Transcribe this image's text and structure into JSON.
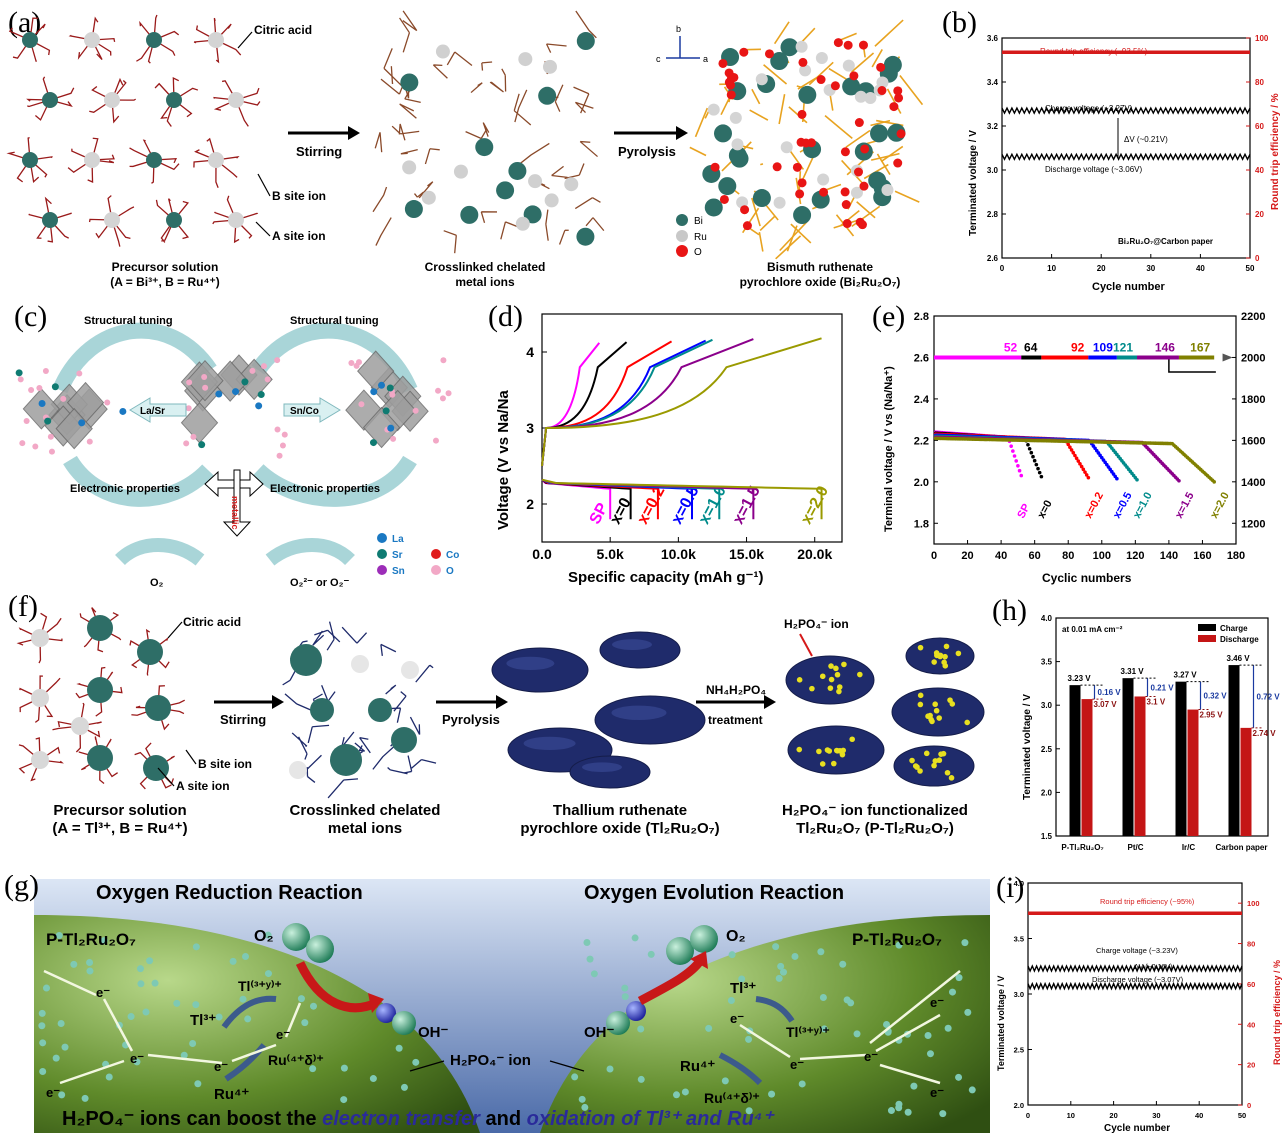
{
  "panel_labels": {
    "a": "(a)",
    "b": "(b)",
    "c": "(c)",
    "d": "(d)",
    "e": "(e)",
    "f": "(f)",
    "g": "(g)",
    "h": "(h)",
    "i": "(i)"
  },
  "panel_a": {
    "citric_acid": "Citric acid",
    "stirring": "Stirring",
    "pyrolysis": "Pyrolysis",
    "b_site": "B site ion",
    "a_site": "A site ion",
    "precursor_title": "Precursor solution",
    "precursor_sub": "(A = Bi³⁺, B = Ru⁴⁺)",
    "crosslinked_1": "Crosslinked chelated",
    "crosslinked_2": "metal ions",
    "product_1": "Bismuth ruthenate",
    "product_2": "pyrochlore oxide (Bi₂Ru₂O₇)",
    "legend": [
      "Bi",
      "Ru",
      "O"
    ],
    "axes": {
      "b": "b",
      "c": "c",
      "a": "a"
    }
  },
  "panel_b": {
    "ylabel": "Terminated voltage / V",
    "y2label": "Round trip efficiency / %",
    "xlabel": "Cycle number",
    "rte": "Round trip efficiency (~93.5%)",
    "charge": "Charge voltage (~3.27V)",
    "discharge": "Discharge voltage (~3.06V)",
    "dv": "ΔV (~0.21V)",
    "sample": "Bi₂Ru₂O₇@Carbon paper"
  },
  "panel_c": {
    "tuning_left": "Structural tuning",
    "tuning_right": "Structural tuning",
    "lasr": "La/Sr",
    "snco": "Sn/Co",
    "elec_left": "Electronic properties",
    "elec_right": "Electronic properties",
    "metallic": "metallic",
    "o2": "O₂",
    "o2_ions": "O₂²⁻ or O₂⁻",
    "legend": [
      "La",
      "Sr",
      "Sn",
      "Co",
      "O"
    ]
  },
  "panel_d": {
    "ylabel": "Voltage (V vs Na/Na",
    "xlabel": "Specific capacity (mAh g⁻¹)",
    "curve_labels": [
      "SP",
      "x=0",
      "x=0.2",
      "x=0.5",
      "x=1.0",
      "x=1.5",
      "x=2.0"
    ]
  },
  "panel_e": {
    "ylabel": "Terminal voltage / V vs (Na/Na⁺)",
    "xlabel": "Cyclic numbers",
    "top_numbers": [
      "52",
      "64",
      "92",
      "109",
      "121",
      "146",
      "167"
    ],
    "curve_labels": [
      "SP",
      "x=0",
      "x=0.2",
      "x=0.5",
      "x=1.0",
      "x=1.5",
      "x=2.0"
    ]
  },
  "panel_f": {
    "citric_acid": "Citric acid",
    "stirring": "Stirring",
    "pyrolysis": "Pyrolysis",
    "nh4": "NH₄H₂PO₄",
    "treatment": "treatment",
    "h2po4_ion": "H₂PO₄⁻ ion",
    "b_site": "B site ion",
    "a_site": "A site ion",
    "precursor_title": "Precursor solution",
    "precursor_sub": "(A = Tl³⁺, B = Ru⁴⁺)",
    "crosslinked_1": "Crosslinked chelated",
    "crosslinked_2": "metal ions",
    "product_1": "Thallium ruthenate",
    "product_2": "pyrochlore oxide (Tl₂Ru₂O₇)",
    "func_1": "H₂PO₄⁻ ion functionalized",
    "func_2": "Tl₂Ru₂O₇ (P-Tl₂Ru₂O₇)"
  },
  "panel_g": {
    "orr": "Oxygen Reduction Reaction",
    "oer": "Oxygen Evolution Reaction",
    "catalyst_left": "P-Tl₂Ru₂O₇",
    "catalyst_right": "P-Tl₂Ru₂O₇",
    "o2_left": "O₂",
    "o2_right": "O₂",
    "oh_left": "OH⁻",
    "oh_right": "OH⁻",
    "tl3_left": "Tl³⁺",
    "tl3y_left": "Tl⁽³⁺ʸ⁾⁺",
    "ru4d_left": "Ru⁽⁴⁺δ⁾⁺",
    "ru4_left": "Ru⁴⁺",
    "tl3_right": "Tl³⁺",
    "tl3y_right": "Tl⁽³⁺ʸ⁾⁺",
    "ru4_right": "Ru⁴⁺",
    "ru4d_right": "Ru⁽⁴⁺δ⁾⁺",
    "electron": "e⁻",
    "h2po4": "H₂PO₄⁻ ion",
    "bottom_1": "H₂PO₄⁻ ions can boost the ",
    "bottom_2": "electron transfer",
    "bottom_3": " and ",
    "bottom_4": "oxidation of Tl³⁺ and Ru⁴⁺"
  },
  "panel_h": {
    "ylabel": "Terminated voltage / V",
    "note": "at 0.01 mA cm⁻²",
    "legend": [
      "Charge",
      "Discharge"
    ],
    "deltas": [
      "0.16 V",
      "0.21 V",
      "0.32 V",
      "0.72 V"
    ]
  },
  "panel_i": {
    "ylabel": "Terminated voltage / V",
    "y2label": "Round trip efficiency / %",
    "xlabel": "Cycle number",
    "rte": "Round trip efficiency (~95%)",
    "charge": "Charge voltage (~3.23V)",
    "discharge": "Discharge voltage (~3.07V)",
    "dv": "ΔV (~0.16V)"
  },
  "colors": {
    "teal": "#2e6e67",
    "red": "#d51a1a",
    "navy": "#1f2b6b",
    "green": "#5f8a2a",
    "olive": "#8a8a10"
  },
  "chart_data": [
    {
      "type": "line",
      "panel": "b",
      "x": [
        0,
        50
      ],
      "xlim": [
        0,
        50
      ],
      "ylim": [
        2.6,
        3.6
      ],
      "y2lim": [
        0,
        100
      ],
      "xticks": [
        "0",
        "10",
        "20",
        "30",
        "40",
        "50"
      ],
      "yticks": [
        "2.6",
        "2.8",
        "3.0",
        "3.2",
        "3.4",
        "3.6"
      ],
      "y2ticks": [
        "0",
        "20",
        "40",
        "60",
        "80",
        "100"
      ],
      "xlabel": "Cycle number",
      "ylabel": "Terminated voltage / V",
      "y2label": "Round trip efficiency / %",
      "series": [
        {
          "name": "Charge voltage (~3.27V)",
          "values": [
            3.27,
            3.27
          ]
        },
        {
          "name": "Discharge voltage (~3.06V)",
          "values": [
            3.06,
            3.06
          ]
        },
        {
          "name": "Round trip efficiency (~93.5%)",
          "axis": "right",
          "values": [
            93.5,
            93.5
          ]
        }
      ]
    },
    {
      "type": "line",
      "panel": "d",
      "xlim": [
        0,
        22000
      ],
      "ylim": [
        1.5,
        4.5
      ],
      "xticks": [
        "0.0",
        "5.0k",
        "10.0k",
        "15.0k",
        "20.0k"
      ],
      "yticks": [
        "2",
        "3",
        "4"
      ],
      "xlabel": "Specific capacity (mAh g⁻¹)",
      "ylabel": "Voltage (V vs Na/Na",
      "series": [
        {
          "name": "SP",
          "discharge_end": 5000,
          "charge_end": 4200,
          "color": "#ff00ff"
        },
        {
          "name": "x=0",
          "discharge_end": 6500,
          "charge_end": 6200,
          "color": "#000000"
        },
        {
          "name": "x=0.2",
          "discharge_end": 8500,
          "charge_end": 9500,
          "color": "#ff0000"
        },
        {
          "name": "x=0.5",
          "discharge_end": 11000,
          "charge_end": 12000,
          "color": "#0000ff"
        },
        {
          "name": "x=1.0",
          "discharge_end": 13000,
          "charge_end": 12500,
          "color": "#008b8b"
        },
        {
          "name": "x=1.5",
          "discharge_end": 15500,
          "charge_end": 15500,
          "color": "#8b008b"
        },
        {
          "name": "x=2.0",
          "discharge_end": 20500,
          "charge_end": 20500,
          "color": "#9a9a00"
        }
      ]
    },
    {
      "type": "scatter",
      "panel": "e",
      "xlim": [
        0,
        180
      ],
      "ylim": [
        1.7,
        2.8
      ],
      "y2lim": [
        1100,
        2200
      ],
      "xticks": [
        "0",
        "20",
        "40",
        "60",
        "80",
        "100",
        "120",
        "140",
        "160",
        "180"
      ],
      "yticks": [
        "1.8",
        "2.0",
        "2.2",
        "2.4",
        "2.6",
        "2.8"
      ],
      "y2ticks": [
        "1200",
        "1400",
        "1600",
        "1800",
        "2000",
        "2200"
      ],
      "xlabel": "Cyclic numbers",
      "ylabel": "Terminal voltage / V vs (Na/Na⁺)",
      "series": [
        {
          "name": "SP",
          "cycles": 52,
          "color": "#ff00ff"
        },
        {
          "name": "x=0",
          "cycles": 64,
          "color": "#000000"
        },
        {
          "name": "x=0.2",
          "cycles": 92,
          "color": "#ff0000"
        },
        {
          "name": "x=0.5",
          "cycles": 109,
          "color": "#0000ff"
        },
        {
          "name": "x=1.0",
          "cycles": 121,
          "color": "#008b8b"
        },
        {
          "name": "x=1.5",
          "cycles": 146,
          "color": "#8b008b"
        },
        {
          "name": "x=2.0",
          "cycles": 167,
          "color": "#808000"
        }
      ]
    },
    {
      "type": "bar",
      "panel": "h",
      "categories": [
        "P-Tl₂Ru₂O₇",
        "Pt/C",
        "Ir/C",
        "Carbon paper"
      ],
      "ylim": [
        1.5,
        4.0
      ],
      "yticks": [
        "1.5",
        "2.0",
        "2.5",
        "3.0",
        "3.5",
        "4.0"
      ],
      "ylabel": "Terminated voltage / V",
      "series": [
        {
          "name": "Charge",
          "values": [
            3.23,
            3.31,
            3.27,
            3.46
          ],
          "labels": [
            "3.23 V",
            "3.31 V",
            "3.27 V",
            "3.46 V"
          ]
        },
        {
          "name": "Discharge",
          "values": [
            3.07,
            3.1,
            2.95,
            2.74
          ],
          "labels": [
            "3.07 V",
            "3.1 V",
            "2.95 V",
            "2.74 V"
          ]
        }
      ]
    },
    {
      "type": "line",
      "panel": "i",
      "xlim": [
        0,
        50
      ],
      "ylim": [
        2.0,
        4.0
      ],
      "y2lim": [
        0,
        110
      ],
      "xticks": [
        "0",
        "10",
        "20",
        "30",
        "40",
        "50"
      ],
      "yticks": [
        "2.0",
        "2.5",
        "3.0",
        "3.5",
        "4.0"
      ],
      "y2ticks": [
        "0",
        "20",
        "40",
        "60",
        "80",
        "100"
      ],
      "xlabel": "Cycle number",
      "ylabel": "Terminated voltage / V",
      "y2label": "Round trip efficiency / %",
      "series": [
        {
          "name": "Charge voltage (~3.23V)",
          "values": [
            3.23,
            3.23
          ]
        },
        {
          "name": "Discharge voltage (~3.07V)",
          "values": [
            3.07,
            3.07
          ]
        },
        {
          "name": "Round trip efficiency (~95%)",
          "axis": "right",
          "values": [
            95,
            95
          ]
        }
      ]
    }
  ]
}
